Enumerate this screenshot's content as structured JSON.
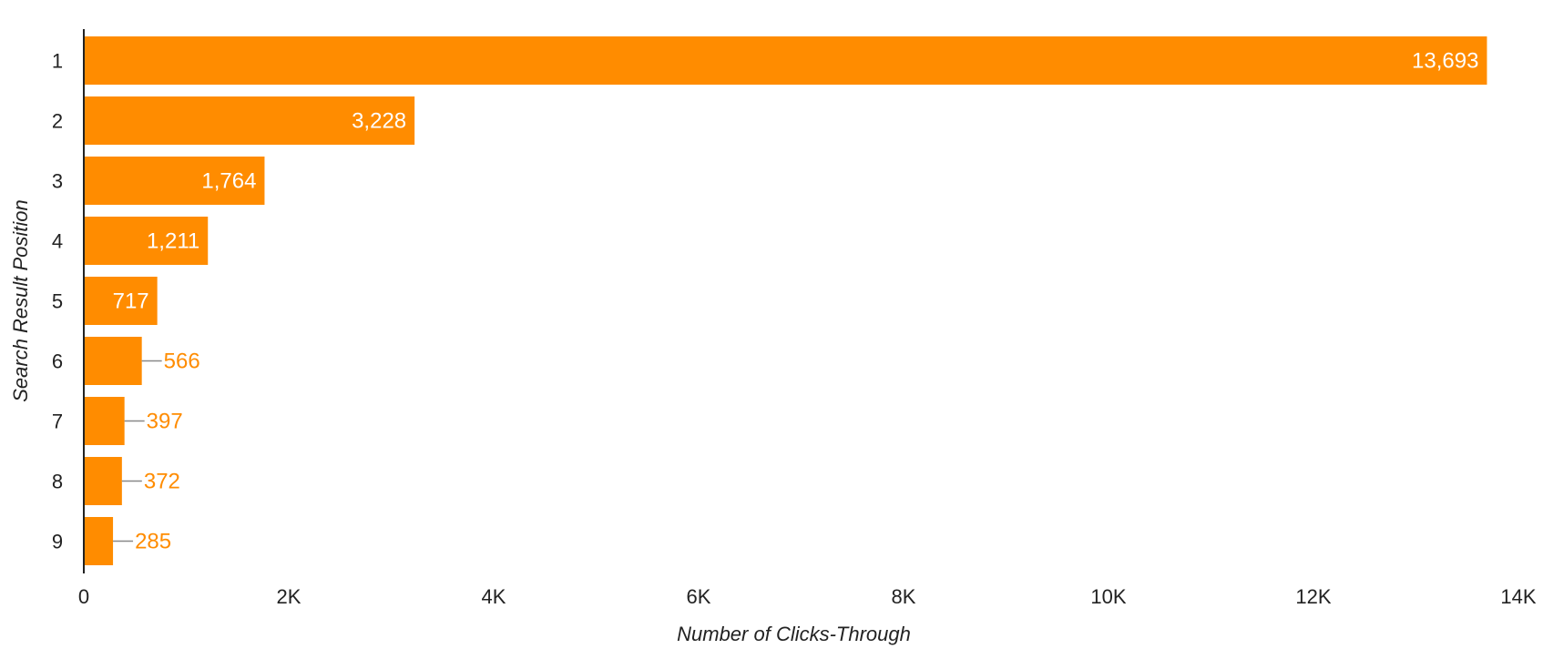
{
  "chart_data": {
    "type": "bar",
    "orientation": "horizontal",
    "categories": [
      "1",
      "2",
      "3",
      "4",
      "5",
      "6",
      "7",
      "8",
      "9"
    ],
    "values": [
      13693,
      3228,
      1764,
      1211,
      717,
      566,
      397,
      372,
      285
    ],
    "value_labels": [
      "13,693",
      "3,228",
      "1,764",
      "1,211",
      "717",
      "566",
      "397",
      "372",
      "285"
    ],
    "xlabel": "Number of Clicks-Through",
    "ylabel": "Search Result Position",
    "xlim": [
      0,
      14000
    ],
    "x_ticks": [
      0,
      2000,
      4000,
      6000,
      8000,
      10000,
      12000,
      14000
    ],
    "x_tick_labels": [
      "0",
      "2K",
      "4K",
      "6K",
      "8K",
      "10K",
      "12K",
      "14K"
    ],
    "grid": false,
    "bar_color": "#ff8c00"
  }
}
